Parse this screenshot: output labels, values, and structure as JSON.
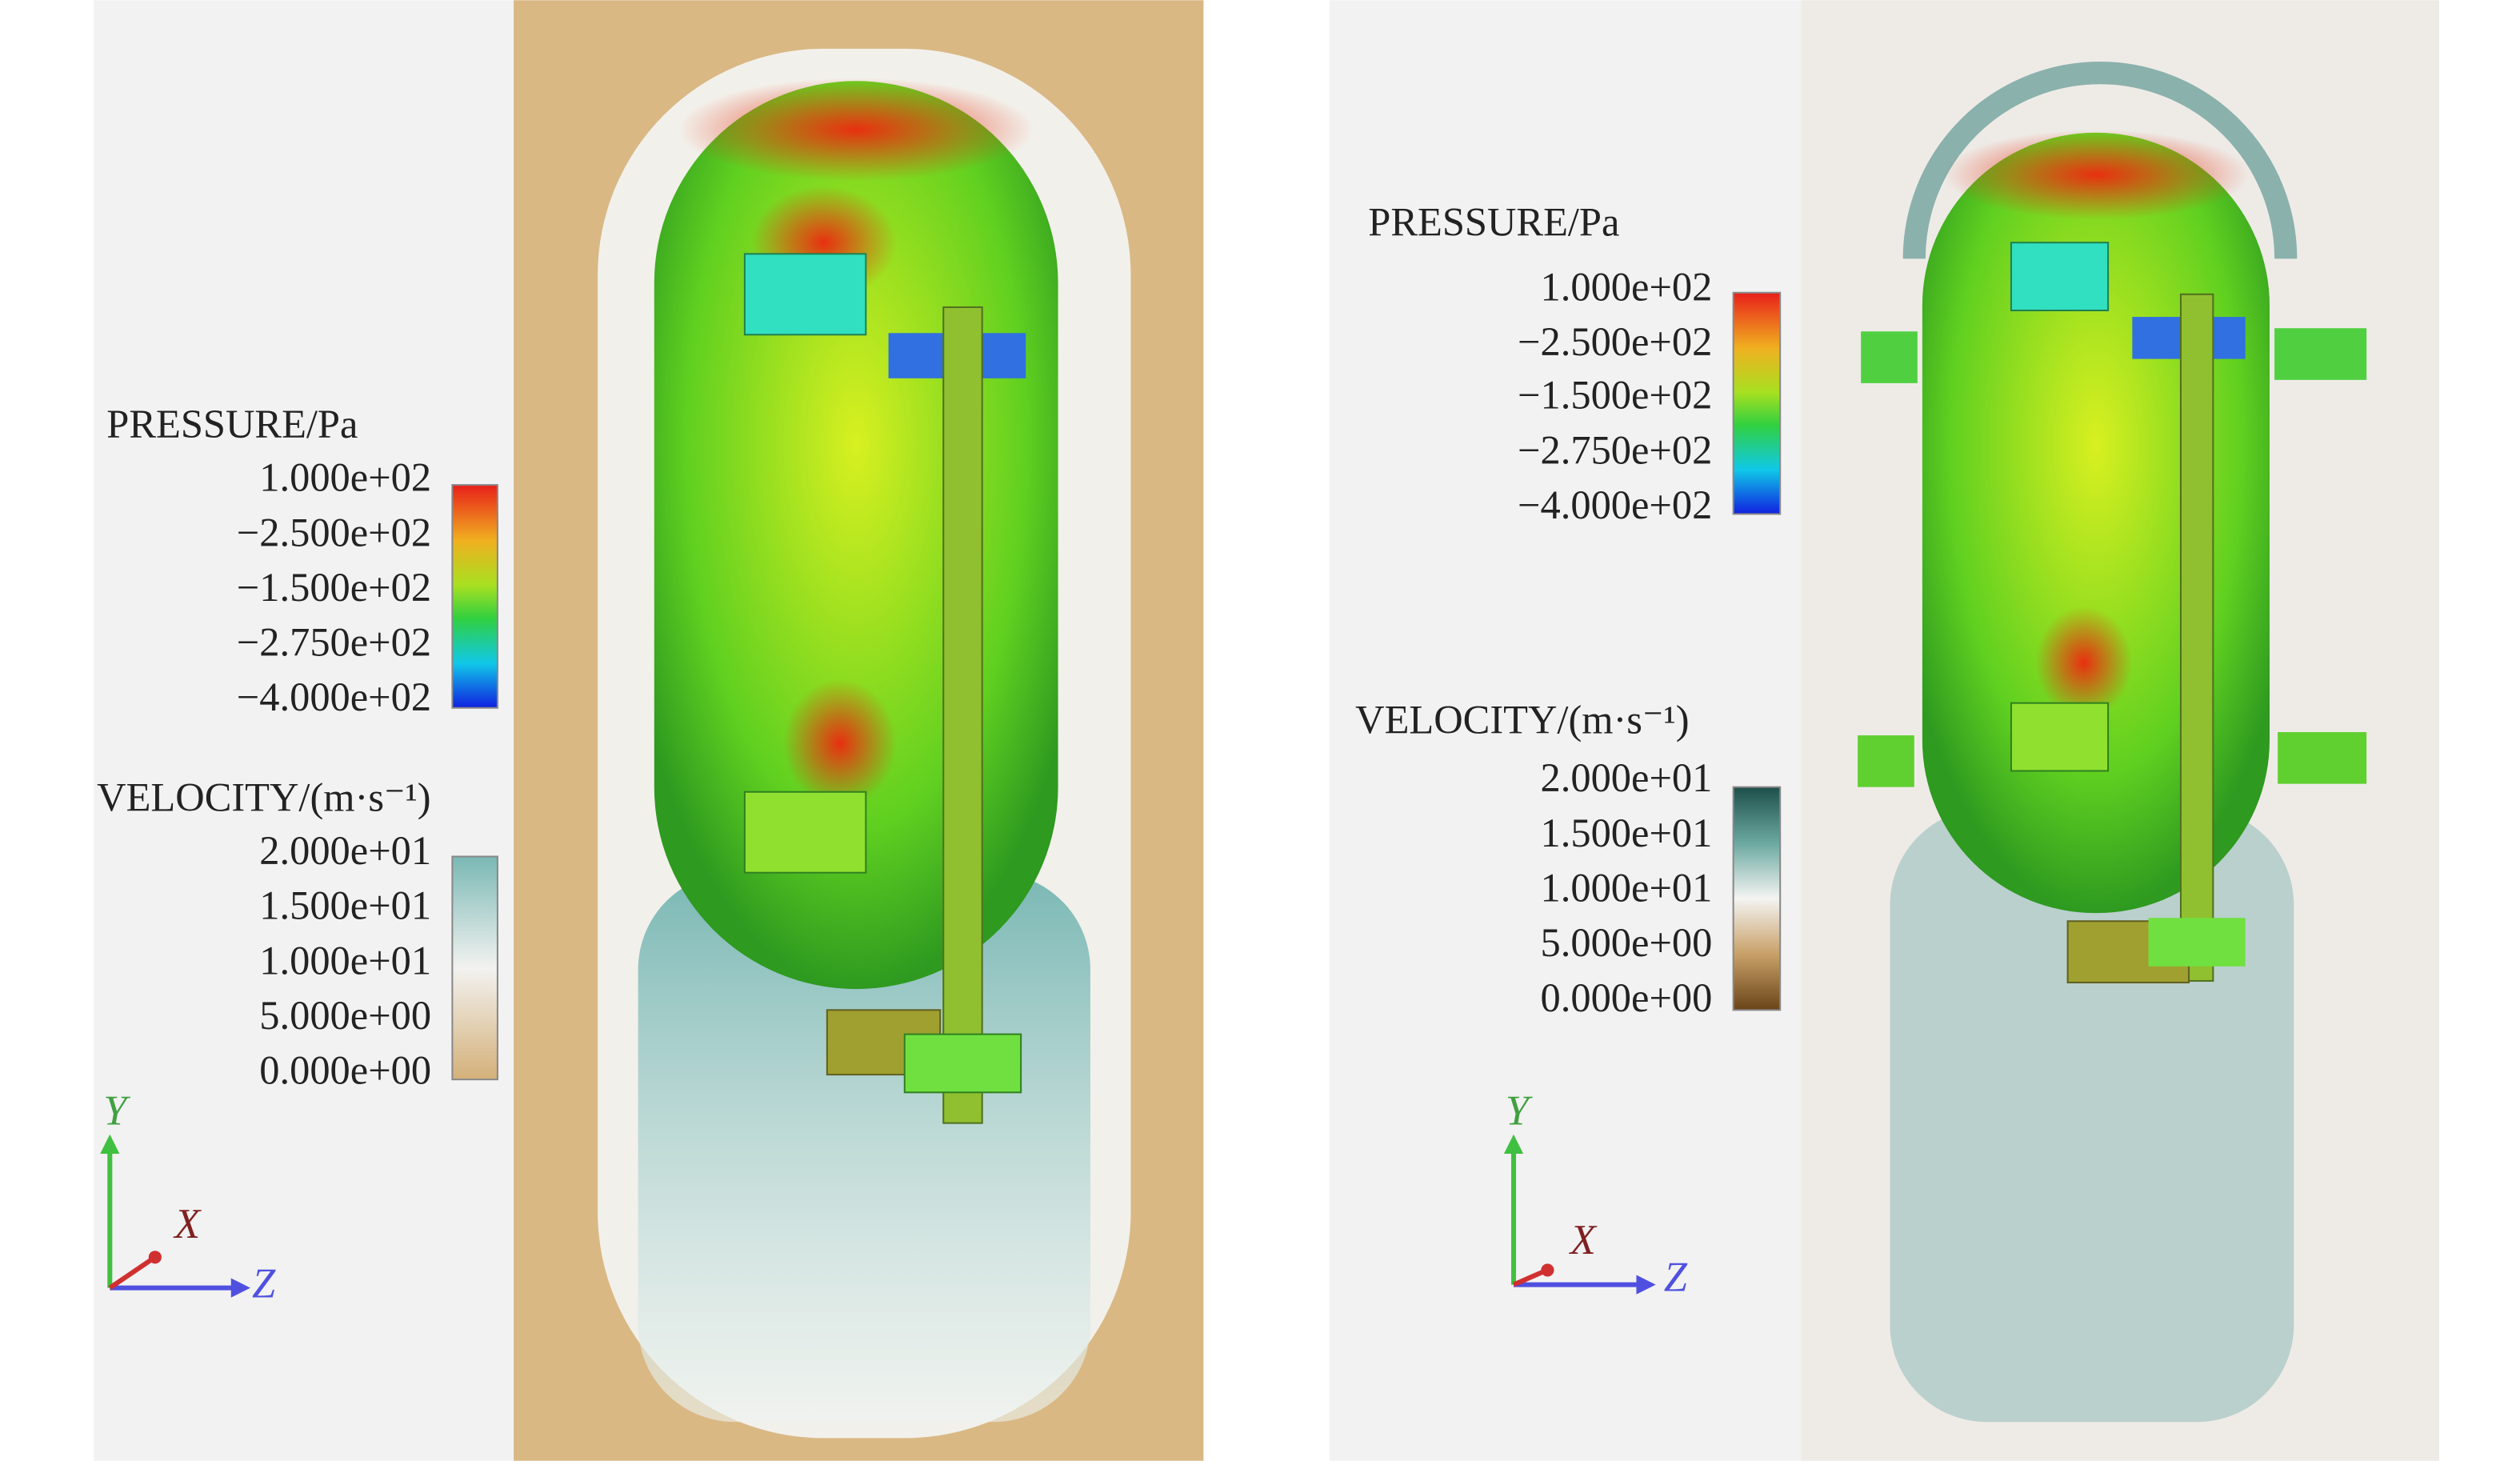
{
  "panels": [
    {
      "pressure_legend": {
        "title": "PRESSURE/Pa",
        "labels": [
          "1.000e+02",
          "−2.500e+02",
          "−1.500e+02",
          "−2.750e+02",
          "−4.000e+02"
        ]
      },
      "velocity_legend": {
        "title": "VELOCITY/(m·s⁻¹)",
        "labels": [
          "2.000e+01",
          "1.500e+01",
          "1.000e+01",
          "5.000e+00",
          "0.000e+00"
        ]
      },
      "axes": {
        "x": "X",
        "y": "Y",
        "z": "Z"
      }
    },
    {
      "pressure_legend": {
        "title": "PRESSURE/Pa",
        "labels": [
          "1.000e+02",
          "−2.500e+02",
          "−1.500e+02",
          "−2.750e+02",
          "−4.000e+02"
        ]
      },
      "velocity_legend": {
        "title": "VELOCITY/(m·s⁻¹)",
        "labels": [
          "2.000e+01",
          "1.500e+01",
          "1.000e+01",
          "5.000e+00",
          "0.000e+00"
        ]
      },
      "axes": {
        "x": "X",
        "y": "Y",
        "z": "Z"
      }
    }
  ]
}
